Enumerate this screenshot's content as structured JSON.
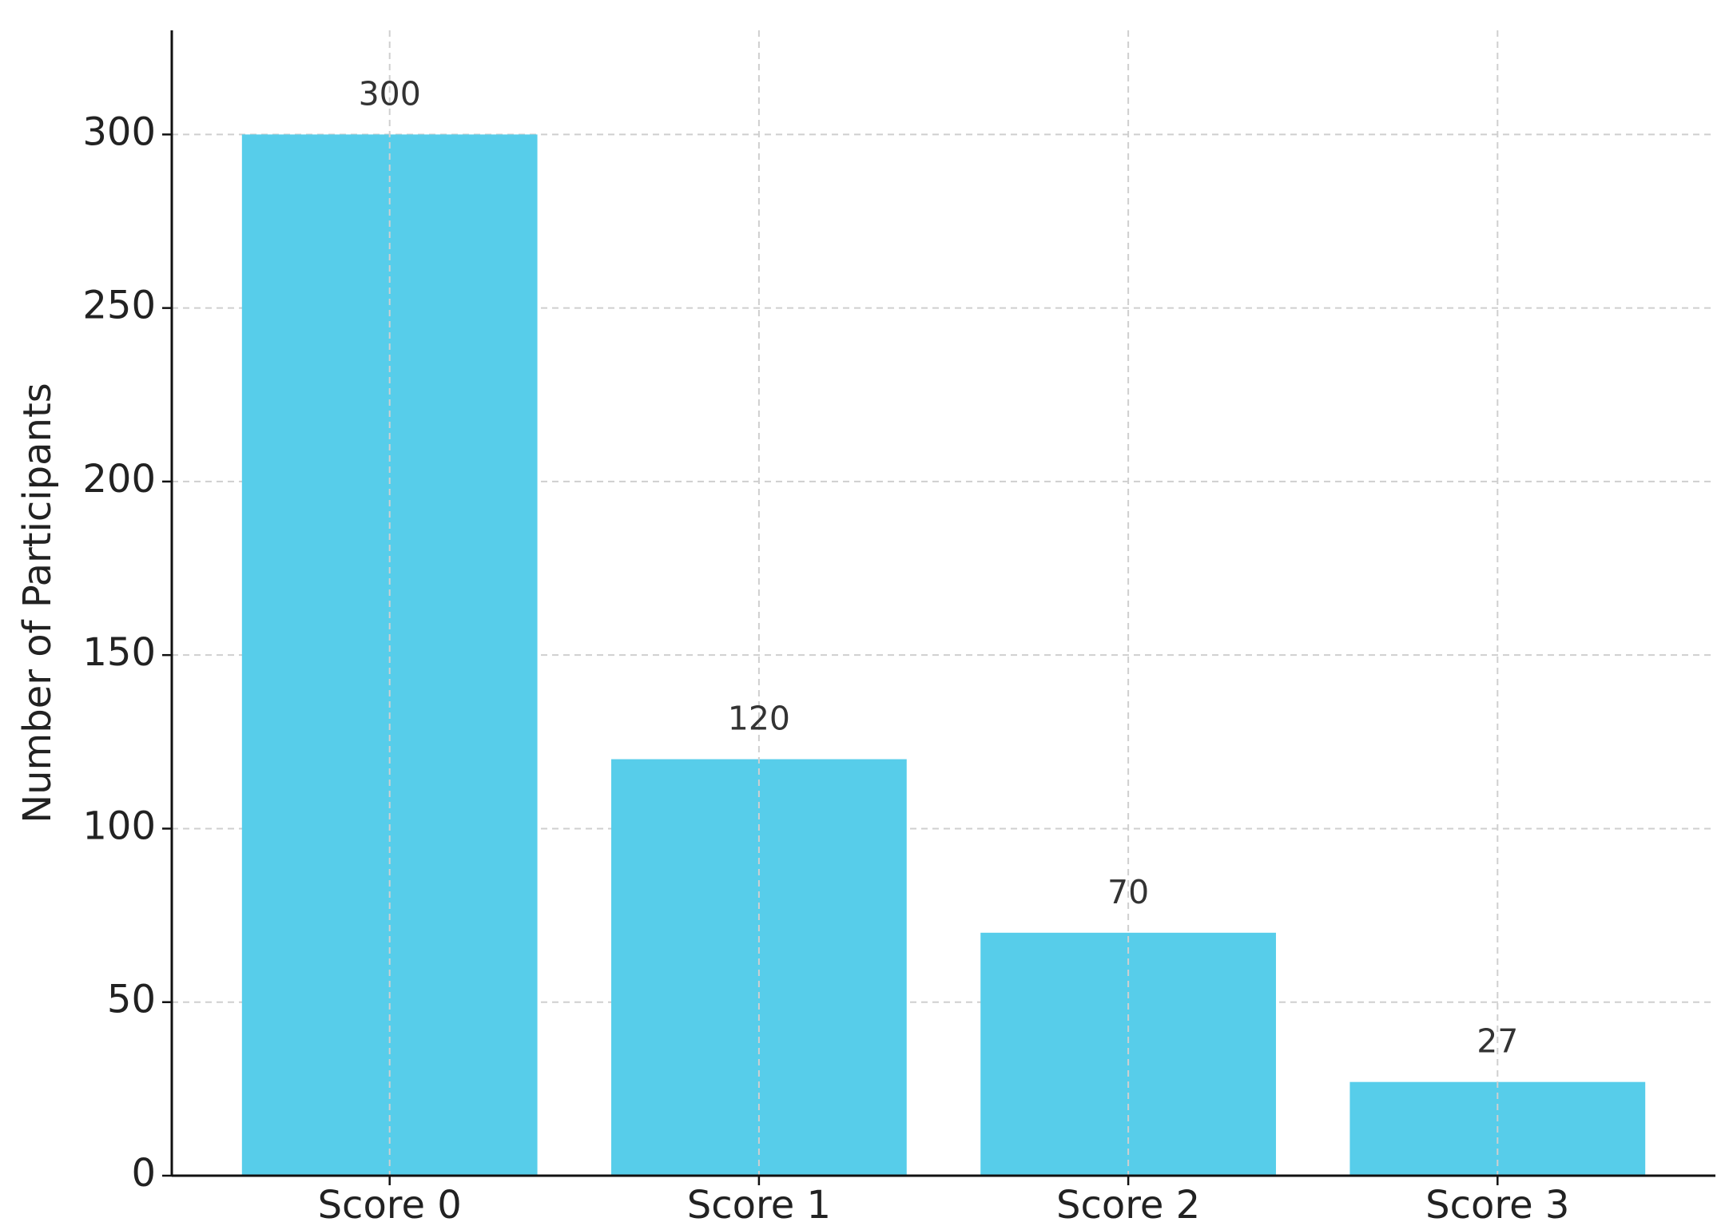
{
  "chart_data": {
    "type": "bar",
    "y_label": "Number of Participants",
    "categories": [
      "Score 0",
      "Score 1",
      "Score 2",
      "Score 3"
    ],
    "values": [
      300,
      120,
      70,
      27
    ],
    "color": "#57cdea",
    "ylim": [
      0,
      330
    ],
    "yticks": [
      0,
      50,
      100,
      150,
      200,
      250,
      300
    ],
    "grid": true
  }
}
